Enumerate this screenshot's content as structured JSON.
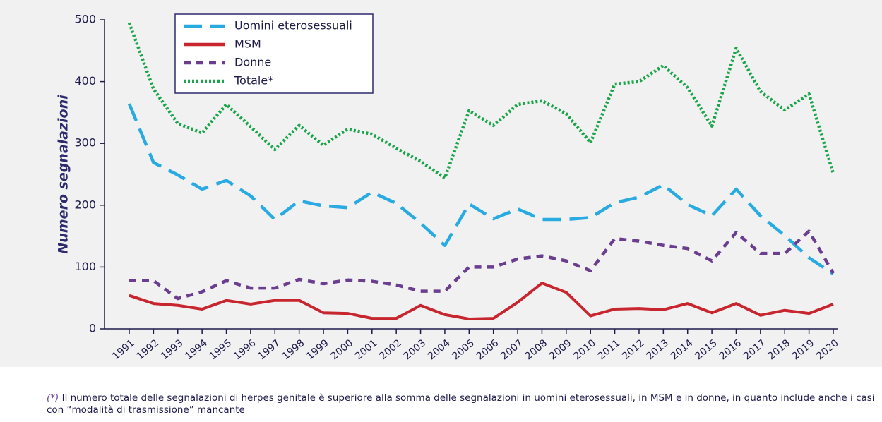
{
  "chart_data": {
    "type": "line",
    "ylabel": "Numero segnalazioni",
    "categories": [
      "1991",
      "1992",
      "1993",
      "1994",
      "1995",
      "1996",
      "1997",
      "1998",
      "1999",
      "2000",
      "2001",
      "2002",
      "2003",
      "2004",
      "2005",
      "2006",
      "2007",
      "2008",
      "2009",
      "2010",
      "2011",
      "2012",
      "2013",
      "2014",
      "2015",
      "2016",
      "2017",
      "2018",
      "2019",
      "2020"
    ],
    "series": [
      {
        "name": "Uomini eterosessuali",
        "color": "#29abe2",
        "dash": "dashed",
        "values": [
          364,
          269,
          249,
          226,
          240,
          215,
          177,
          207,
          199,
          196,
          221,
          203,
          171,
          135,
          202,
          178,
          194,
          177,
          177,
          180,
          204,
          213,
          233,
          201,
          183,
          226,
          183,
          151,
          115,
          89
        ]
      },
      {
        "name": "MSM",
        "color": "#c8262e",
        "dash": "solid",
        "values": [
          54,
          41,
          38,
          32,
          46,
          40,
          46,
          46,
          26,
          25,
          17,
          17,
          38,
          23,
          16,
          17,
          43,
          74,
          59,
          21,
          32,
          33,
          31,
          41,
          26,
          41,
          22,
          30,
          25,
          40
        ]
      },
      {
        "name": "Donne",
        "color": "#6a3d8f",
        "dash": "short-dash",
        "values": [
          78,
          78,
          49,
          60,
          78,
          66,
          66,
          80,
          73,
          79,
          77,
          71,
          61,
          61,
          100,
          100,
          113,
          118,
          110,
          94,
          146,
          142,
          135,
          130,
          110,
          156,
          122,
          122,
          158,
          90
        ]
      },
      {
        "name": "Totale*",
        "color": "#1aa54a",
        "dash": "dotted",
        "values": [
          495,
          388,
          332,
          317,
          363,
          327,
          290,
          329,
          297,
          323,
          315,
          292,
          271,
          244,
          353,
          329,
          363,
          369,
          348,
          301,
          396,
          400,
          426,
          390,
          328,
          454,
          384,
          354,
          380,
          251
        ]
      }
    ],
    "ylim": [
      0,
      500
    ],
    "yticks": [
      0,
      100,
      200,
      300,
      400,
      500
    ],
    "grid": false,
    "legend": "top-left"
  },
  "footnote": {
    "marker": "(*)",
    "text": " Il numero totale delle segnalazioni di herpes genitale è superiore alla somma delle segnalazioni in uomini eterosessuali, in MSM e in donne, in quanto include anche i casi con “modalità di trasmissione” mancante"
  }
}
